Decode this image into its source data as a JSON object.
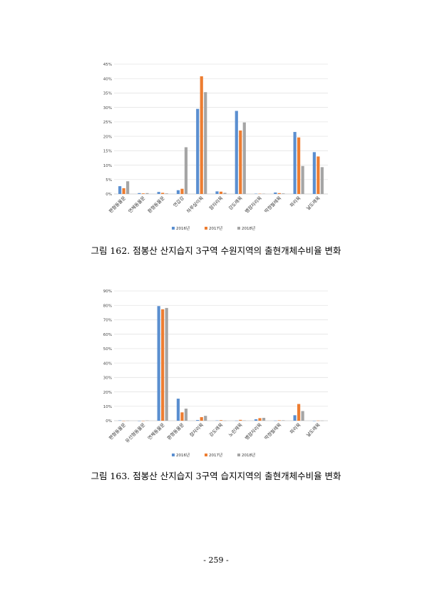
{
  "colors": {
    "2016": "#5b8fd0",
    "2017": "#ed7d31",
    "2018": "#a5a5a5"
  },
  "captions": {
    "fig162": "그림 162. 점봉산 산지습지 3구역 수원지역의 출현개체수비율 변화",
    "fig163": "그림 163. 점봉산 산지습지 3구역 습지지역의 출현개체수비율 변화"
  },
  "page_number": "- 259 -",
  "chart_data": [
    {
      "type": "bar",
      "categories": [
        "편형동물문",
        "연체동물문",
        "환형동물문",
        "연갑강",
        "하루살이목",
        "잠자리목",
        "강도래목",
        "뱀잠자리목",
        "딱정벌레목",
        "파리목",
        "날도래목"
      ],
      "series": [
        {
          "name": "2016년",
          "values": [
            2.7,
            0.3,
            0.7,
            1.3,
            29.5,
            0.9,
            28.8,
            0.1,
            0.5,
            21.5,
            14.5
          ]
        },
        {
          "name": "2017년",
          "values": [
            2.0,
            0.2,
            0.4,
            1.8,
            40.8,
            0.8,
            22.0,
            0.1,
            0.3,
            19.6,
            13.0
          ]
        },
        {
          "name": "2018년",
          "values": [
            4.4,
            0.3,
            0.2,
            16.2,
            35.3,
            0.4,
            24.8,
            0.1,
            0.2,
            9.7,
            9.3
          ]
        }
      ],
      "y_ticks": [
        "0%",
        "5%",
        "10%",
        "15%",
        "20%",
        "25%",
        "30%",
        "35%",
        "40%",
        "45%"
      ],
      "ylim": [
        0,
        45
      ],
      "grid": true,
      "legend": "bottom"
    },
    {
      "type": "bar",
      "categories": [
        "편형동물문",
        "유선형동물문",
        "연체동물문",
        "환형동물문",
        "잠자리목",
        "강도래목",
        "노린재목",
        "뱀잠자리목",
        "딱정벌레목",
        "파리목",
        "날도래목"
      ],
      "series": [
        {
          "name": "2016년",
          "values": [
            0.2,
            0.0,
            79.5,
            15.3,
            0.5,
            0.2,
            0.1,
            1.0,
            0.1,
            3.8,
            0.0
          ]
        },
        {
          "name": "2017년",
          "values": [
            0.0,
            0.0,
            77.3,
            5.8,
            2.5,
            0.4,
            0.6,
            1.8,
            0.3,
            11.6,
            0.1
          ]
        },
        {
          "name": "2018년",
          "values": [
            0.1,
            0.2,
            78.2,
            8.4,
            3.4,
            0.1,
            0.2,
            2.0,
            0.3,
            6.7,
            0.1
          ]
        }
      ],
      "y_ticks": [
        "0%",
        "10%",
        "20%",
        "30%",
        "40%",
        "50%",
        "60%",
        "70%",
        "80%",
        "90%"
      ],
      "ylim": [
        0,
        90
      ],
      "grid": true,
      "legend": "bottom"
    }
  ]
}
